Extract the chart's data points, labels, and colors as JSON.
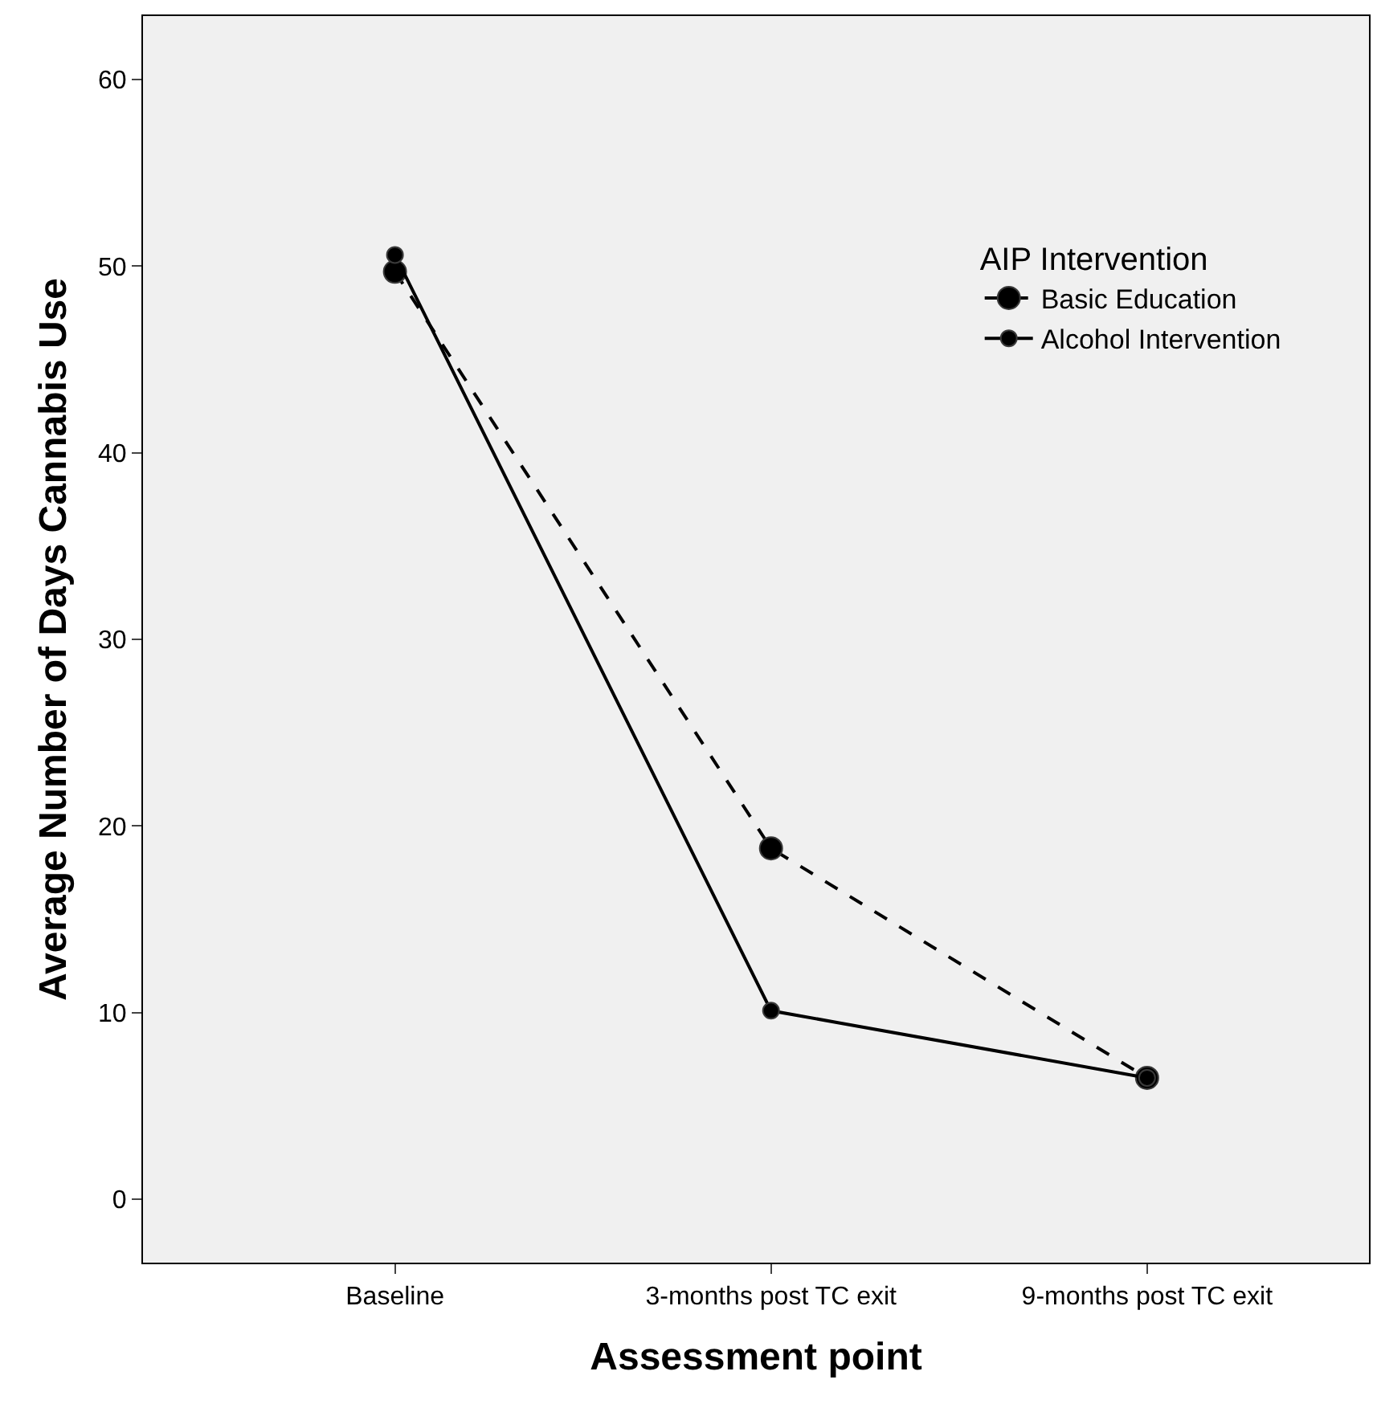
{
  "chart_data": {
    "type": "line",
    "xlabel": "Assessment point",
    "ylabel": "Average Number of Days Cannabis Use",
    "legend_title": "AIP Intervention",
    "categories": [
      "Baseline",
      "3-months post TC exit",
      "9-months post TC exit"
    ],
    "series": [
      {
        "name": "Basic Education",
        "color": "#000000",
        "line_style": "dashed",
        "values": [
          49.7,
          18.8,
          6.5
        ]
      },
      {
        "name": "Alcohol Intervention",
        "color": "#000000",
        "line_style": "solid",
        "values": [
          50.6,
          10.1,
          6.5
        ]
      }
    ],
    "ylim": [
      -3.4,
      63.4
    ],
    "yticks": [
      0,
      10,
      20,
      30,
      40,
      50,
      60
    ],
    "grid": false,
    "legend": "top right",
    "marker": "circle"
  }
}
